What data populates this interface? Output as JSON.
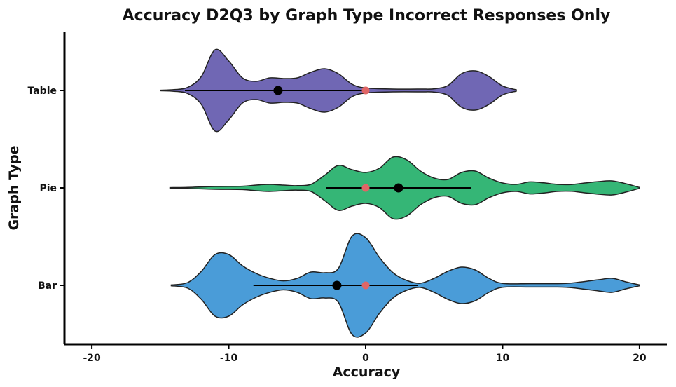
{
  "chart_data": {
    "type": "violin",
    "title": "Accuracy D2Q3 by Graph Type Incorrect Responses Only",
    "xlabel": "Accuracy",
    "ylabel": "Graph Type",
    "xlim": [
      -22,
      22
    ],
    "x_ticks": [
      -20,
      -10,
      0,
      10,
      20
    ],
    "x_tick_labels": [
      "-20",
      "-10",
      "0",
      "10",
      "20"
    ],
    "grid": false,
    "groups": [
      {
        "name": "Table",
        "color": "#7067b4",
        "range": [
          -15,
          11
        ],
        "mean": -6.4,
        "ci": [
          -13.2,
          0
        ],
        "reference": 0,
        "density": [
          [
            -15,
            0.2
          ],
          [
            -14,
            0.6
          ],
          [
            -13,
            2.2
          ],
          [
            -12,
            10
          ],
          [
            -11,
            29
          ],
          [
            -10,
            21
          ],
          [
            -9,
            9
          ],
          [
            -8,
            6.5
          ],
          [
            -7,
            9
          ],
          [
            -6,
            8.5
          ],
          [
            -5,
            9
          ],
          [
            -4,
            13
          ],
          [
            -3,
            15.5
          ],
          [
            -2,
            12
          ],
          [
            -1,
            4.5
          ],
          [
            0,
            1.8
          ],
          [
            2,
            1
          ],
          [
            4,
            1
          ],
          [
            5,
            1.2
          ],
          [
            6,
            3.5
          ],
          [
            7,
            12
          ],
          [
            8,
            14
          ],
          [
            9,
            10
          ],
          [
            10,
            3.2
          ],
          [
            11,
            0.5
          ]
        ]
      },
      {
        "name": "Pie",
        "color": "#35b676",
        "range": [
          -14.3,
          20
        ],
        "mean": 2.4,
        "ci": [
          -2.9,
          7.7
        ],
        "reference": 0,
        "density": [
          [
            -14.3,
            0.2
          ],
          [
            -13,
            0.4
          ],
          [
            -11,
            1
          ],
          [
            -9,
            1.2
          ],
          [
            -8,
            2
          ],
          [
            -7,
            2.5
          ],
          [
            -6,
            2
          ],
          [
            -5,
            1.6
          ],
          [
            -4,
            2.5
          ],
          [
            -3,
            9
          ],
          [
            -2,
            16
          ],
          [
            -1,
            13
          ],
          [
            0,
            11
          ],
          [
            1,
            14
          ],
          [
            2,
            22
          ],
          [
            3,
            20
          ],
          [
            4,
            12
          ],
          [
            5,
            7
          ],
          [
            6,
            6
          ],
          [
            7,
            11
          ],
          [
            8,
            12
          ],
          [
            9,
            7
          ],
          [
            10,
            3.5
          ],
          [
            11,
            2.5
          ],
          [
            12,
            4.3
          ],
          [
            13,
            3.6
          ],
          [
            14,
            2.5
          ],
          [
            15,
            2.4
          ],
          [
            16,
            3.5
          ],
          [
            17,
            4.5
          ],
          [
            18,
            5
          ],
          [
            19,
            3
          ],
          [
            20,
            0.3
          ]
        ]
      },
      {
        "name": "Bar",
        "color": "#4a9cd8",
        "range": [
          -14.2,
          20
        ],
        "mean": -2.1,
        "ci": [
          -8.2,
          3.8
        ],
        "reference": 0,
        "density": [
          [
            -14.2,
            0.3
          ],
          [
            -13,
            2
          ],
          [
            -12,
            10
          ],
          [
            -11,
            22
          ],
          [
            -10,
            22
          ],
          [
            -9,
            14
          ],
          [
            -8,
            8.5
          ],
          [
            -7,
            5
          ],
          [
            -6,
            3.2
          ],
          [
            -5,
            5
          ],
          [
            -4,
            9.5
          ],
          [
            -3,
            9
          ],
          [
            -2,
            12
          ],
          [
            -1,
            35
          ],
          [
            0,
            34
          ],
          [
            1,
            20
          ],
          [
            2,
            9
          ],
          [
            3,
            3.5
          ],
          [
            4,
            1.5
          ],
          [
            5,
            5
          ],
          [
            6,
            10
          ],
          [
            7,
            13
          ],
          [
            8,
            11
          ],
          [
            9,
            5
          ],
          [
            10,
            1.4
          ],
          [
            12,
            1.2
          ],
          [
            14,
            1.2
          ],
          [
            15,
            1.6
          ],
          [
            17,
            4
          ],
          [
            18,
            5
          ],
          [
            19,
            2.5
          ],
          [
            20,
            0.3
          ]
        ]
      }
    ],
    "colors": {
      "mean_point": "#000000",
      "reference_point": "#e06666"
    }
  }
}
